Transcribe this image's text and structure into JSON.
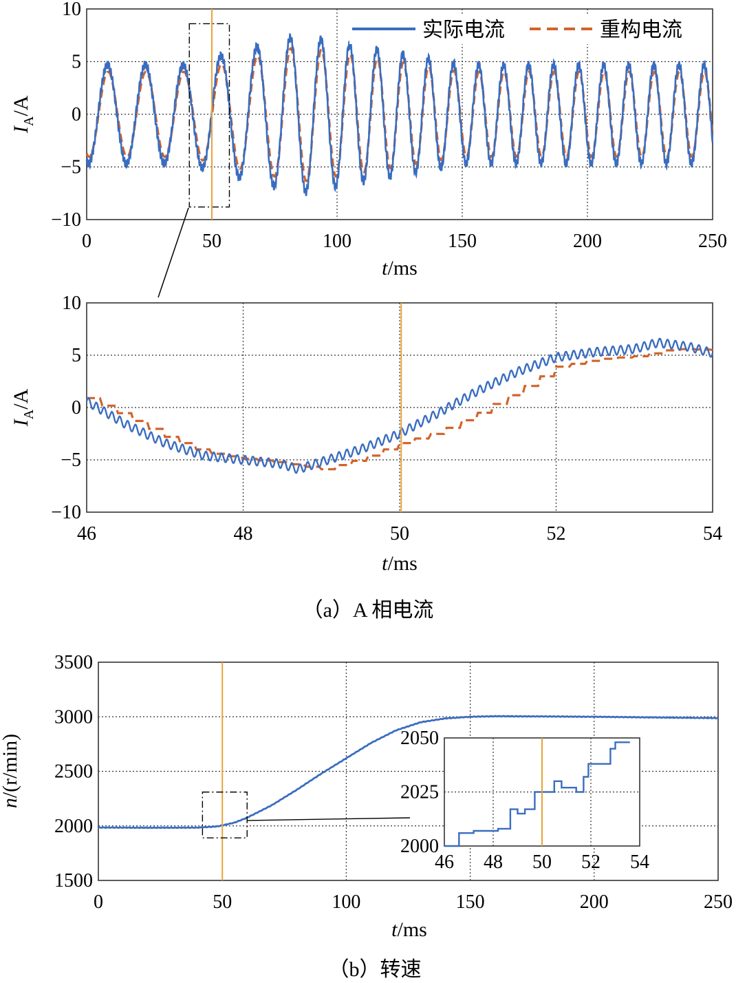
{
  "chart_data": [
    {
      "id": "current_full",
      "type": "line",
      "xlabel_main": "t",
      "xlabel_unit": "/ms",
      "ylabel_main": "I",
      "ylabel_sub": "A",
      "ylabel_unit": "/A",
      "xlim": [
        0,
        250
      ],
      "ylim": [
        -10,
        10
      ],
      "xticks": [
        0,
        50,
        100,
        150,
        200,
        250
      ],
      "yticks": [
        -10,
        -5,
        0,
        5,
        10
      ],
      "ytick_labels": [
        "−10",
        "−5",
        "0",
        "5",
        "10"
      ],
      "event_x": 50,
      "legend": [
        "实际电流",
        "重构电流"
      ],
      "series": [
        {
          "name": "实际电流",
          "color": "#3a6dbf",
          "style": "solid",
          "description": "sinusoid, amplitude ~4.7 A at 0–40 ms, grows to ~7.5 A near 85 ms, returns to ~4.7 A after 150 ms; frequency rises from ~67 Hz to ~100 Hz (speed 2000→3000 r/min)"
        },
        {
          "name": "重构电流",
          "color": "#d1632a",
          "style": "dashed",
          "description": "tracks actual current with slightly smaller amplitude (~4.0 A steady)"
        }
      ],
      "zoom_box": {
        "x": [
          41,
          57
        ],
        "y": [
          -8.8,
          8.6
        ]
      }
    },
    {
      "id": "current_zoom",
      "type": "line",
      "xlabel_main": "t",
      "xlabel_unit": "/ms",
      "ylabel_main": "I",
      "ylabel_sub": "A",
      "ylabel_unit": "/A",
      "xlim": [
        46,
        54
      ],
      "ylim": [
        -10,
        10
      ],
      "xticks": [
        46,
        48,
        50,
        52,
        54
      ],
      "yticks": [
        -10,
        -5,
        0,
        5,
        10
      ],
      "ytick_labels": [
        "−10",
        "−5",
        "0",
        "5",
        "10"
      ],
      "event_x": 50.02,
      "series": [
        {
          "name": "实际电流",
          "color": "#3a6dbf",
          "x": [
            46,
            46.5,
            47,
            47.5,
            48,
            48.5,
            48.7,
            49,
            49.5,
            50,
            50.5,
            51,
            51.5,
            52,
            52.5,
            53,
            53.3,
            53.7,
            54
          ],
          "y": [
            0.6,
            -1.6,
            -3.4,
            -4.6,
            -5.0,
            -5.4,
            -5.9,
            -5.2,
            -4.0,
            -2.5,
            -0.5,
            1.6,
            3.4,
            4.8,
            5.3,
            5.6,
            6.2,
            5.8,
            5.2
          ]
        },
        {
          "name": "重构电流",
          "color": "#d1632a",
          "x": [
            46,
            46.5,
            47,
            47.5,
            48,
            48.5,
            49,
            49.5,
            50,
            50.5,
            51,
            51.5,
            52,
            52.5,
            53,
            53.5,
            54
          ],
          "y": [
            0.9,
            -0.9,
            -2.8,
            -4.3,
            -4.9,
            -5.3,
            -5.9,
            -4.9,
            -3.4,
            -2.3,
            -0.5,
            1.6,
            3.9,
            4.6,
            4.9,
            5.6,
            5.5
          ]
        }
      ]
    },
    {
      "id": "speed",
      "type": "line",
      "xlabel_main": "t",
      "xlabel_unit": "/ms",
      "ylabel_main": "n",
      "ylabel_unit": "/(r/min)",
      "xlim": [
        0,
        250
      ],
      "ylim": [
        1500,
        3500
      ],
      "xticks": [
        0,
        50,
        100,
        150,
        200,
        250
      ],
      "yticks": [
        1500,
        2000,
        2500,
        3000,
        3500
      ],
      "event_x": 50,
      "series": [
        {
          "name": "n",
          "color": "#3a6dbf",
          "x": [
            0,
            20,
            40,
            48,
            55,
            60,
            70,
            80,
            90,
            100,
            110,
            120,
            130,
            140,
            150,
            160,
            180,
            200,
            220,
            250
          ],
          "y": [
            1985,
            1983,
            1984,
            1995,
            2030,
            2075,
            2190,
            2330,
            2480,
            2620,
            2760,
            2875,
            2950,
            2985,
            3000,
            3005,
            3003,
            3000,
            2995,
            2988
          ]
        }
      ],
      "zoom_box": {
        "x": [
          42,
          60
        ],
        "y": [
          1890,
          2310
        ]
      },
      "inset": {
        "xlim": [
          46,
          54
        ],
        "ylim": [
          2000,
          2050
        ],
        "xticks": [
          46,
          48,
          50,
          52,
          54
        ],
        "yticks": [
          2000,
          2025,
          2050
        ],
        "event_x": 50,
        "x": [
          46,
          46.6,
          46.6,
          47.2,
          47.2,
          48.2,
          48.2,
          48.7,
          48.7,
          49.0,
          49.0,
          49.3,
          49.3,
          49.7,
          49.7,
          50.5,
          50.5,
          50.8,
          50.8,
          51.4,
          51.4,
          51.7,
          51.7,
          51.9,
          51.9,
          52.8,
          52.8,
          53.0,
          53.0,
          53.6
        ],
        "y": [
          2000,
          2000,
          2006,
          2006,
          2007,
          2007,
          2008,
          2008,
          2017,
          2017,
          2015,
          2015,
          2017,
          2017,
          2025,
          2025,
          2030,
          2030,
          2027,
          2027,
          2025,
          2025,
          2032,
          2032,
          2038,
          2038,
          2045,
          2045,
          2048,
          2048
        ]
      }
    }
  ],
  "captions": {
    "a": "（a）A 相电流",
    "b": "（b）转速"
  },
  "colors": {
    "actual": "#3a6dbf",
    "reconstructed": "#d1632a",
    "event": "#e8a33a",
    "grid": "#333333"
  }
}
